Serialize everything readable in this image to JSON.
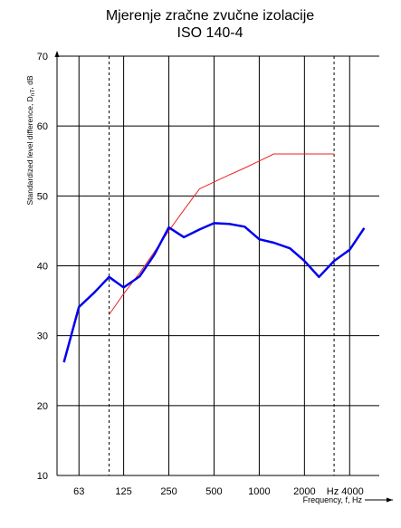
{
  "chart_data": {
    "type": "line",
    "title": "Mjerenje zračne zvučne izolacije",
    "subtitle": "ISO 140-4",
    "ylabel": [
      "Standardized level difference, D",
      "nT",
      ", dB"
    ],
    "xlabel": "Frequency, f, Hz",
    "log_x": true,
    "xlim": [
      45,
      6300
    ],
    "xticks": [
      63,
      125,
      250,
      500,
      1000,
      {
        "value": 4000,
        "label": "Hz 4000"
      },
      2000
    ],
    "dashed_vlines": [
      100,
      3150
    ],
    "ylim": [
      10,
      70
    ],
    "yticks": [
      10,
      20,
      30,
      40,
      50,
      60,
      70
    ],
    "grid": true,
    "series": [
      {
        "color": "#0000ee",
        "x": [
          50,
          63,
          80,
          100,
          125,
          160,
          200,
          250,
          315,
          400,
          500,
          630,
          800,
          1000,
          1250,
          1600,
          2000,
          2500,
          3150,
          4000,
          5000
        ],
        "values": [
          26.2,
          34.1,
          36.2,
          38.4,
          36.9,
          38.5,
          41.6,
          45.5,
          44.1,
          45.2,
          46.1,
          46,
          45.6,
          43.8,
          43.3,
          42.5,
          40.7,
          38.4,
          40.7,
          42.3,
          45.4
        ]
      },
      {
        "color": "#ee2222",
        "x": [
          100,
          125,
          160,
          200,
          250,
          315,
          400,
          500,
          630,
          800,
          1000,
          1250,
          1600,
          2000,
          2500,
          3150
        ],
        "values": [
          33,
          36,
          39,
          42,
          45,
          48,
          51,
          52,
          53,
          54,
          55,
          56,
          56,
          56,
          56,
          56
        ]
      }
    ]
  }
}
